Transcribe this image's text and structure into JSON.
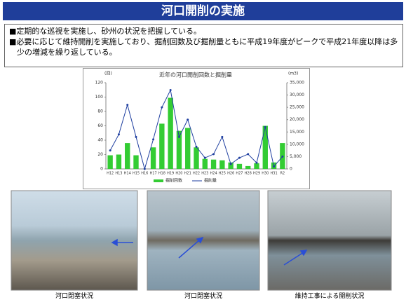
{
  "header": {
    "title": "河口開削の実施"
  },
  "bullets": [
    "■定期的な巡視を実施し、砂州の状況を把握している。",
    "■必要に応じて維持開削を実施しており、掘削回数及び掘削量ともに平成19年度がピークで平成21年度以降は多少の増減を繰り返している。"
  ],
  "chart_data": {
    "type": "bar-line",
    "title": "近年の河口開削回数と掘削量",
    "y_label": "(回)",
    "y2_label": "(m3)",
    "categories": [
      "H12",
      "H13",
      "H14",
      "H15",
      "H16",
      "H17",
      "H18",
      "H19",
      "H20",
      "H21",
      "H22",
      "H23",
      "H24",
      "H25",
      "H26",
      "H27",
      "H28",
      "H29",
      "H30",
      "H31",
      "R2"
    ],
    "series": [
      {
        "name": "掘削回数",
        "color": "#33cc33",
        "values": [
          19,
          20,
          36,
          19,
          0,
          30,
          63,
          99,
          53,
          57,
          30,
          14,
          13,
          12,
          9,
          7,
          4,
          8,
          60,
          9,
          36
        ]
      },
      {
        "name": "掘削量",
        "color": "#1f3fa0",
        "axis": "y2",
        "values": [
          7500,
          14000,
          26000,
          13000,
          0,
          12000,
          25000,
          32000,
          13000,
          20000,
          9000,
          4500,
          6000,
          13000,
          2000,
          4500,
          6000,
          2500,
          17000,
          1000,
          5000
        ]
      }
    ],
    "ylim": [
      0,
      120
    ],
    "yticks": [
      0,
      20,
      40,
      60,
      80,
      100,
      120
    ],
    "y2lim": [
      0,
      35000
    ],
    "y2ticks": [
      0,
      {
        "value": 5000,
        "label": "5,000"
      },
      {
        "value": 10000,
        "label": "10,000"
      },
      {
        "value": 15000,
        "label": "15,000"
      },
      {
        "value": 20000,
        "label": "20,000"
      },
      {
        "value": 25000,
        "label": "25,000"
      },
      {
        "value": 30000,
        "label": "30,000"
      },
      {
        "value": 35000,
        "label": "35,000"
      }
    ]
  },
  "photos": [
    {
      "caption": "河口閉塞状況"
    },
    {
      "caption": "河口閉塞状況"
    },
    {
      "caption": "維持工事による開削状況"
    }
  ]
}
